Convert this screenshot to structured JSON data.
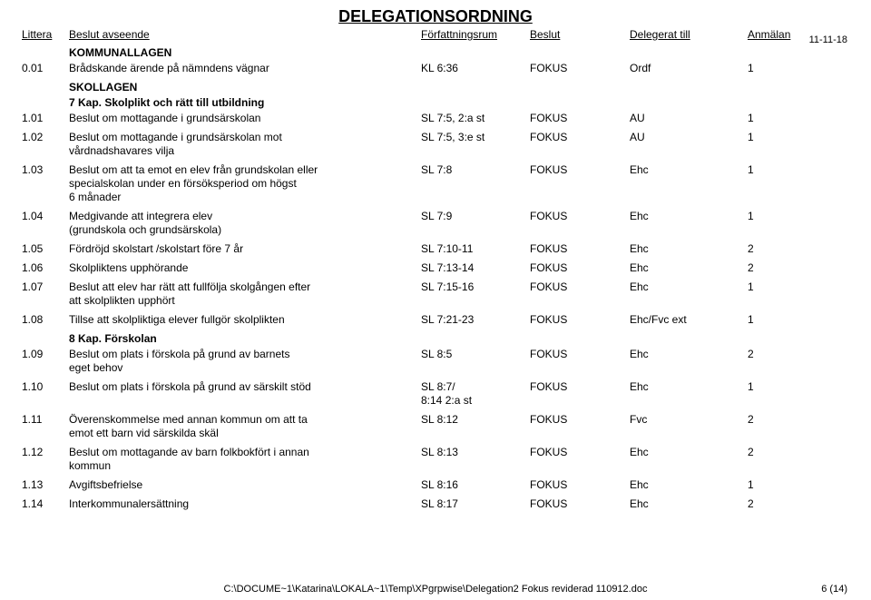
{
  "title": "DELEGATIONSORDNING",
  "date": "11-11-18",
  "columns": {
    "littera": "Littera",
    "beslut_avseende": "Beslut avseende",
    "forfattningsrum": "Författningsrum",
    "beslut": "Beslut",
    "delegerat_till": "Delegerat till",
    "anmalan": "Anmälan"
  },
  "sections": {
    "kommunallagen": "KOMMUNALLAGEN",
    "skollagen": "SKOLLAGEN",
    "kap7": "7 Kap. Skolplikt och rätt till utbildning",
    "kap8": "8 Kap. Förskolan"
  },
  "rows": [
    {
      "litt": "0.01",
      "desc": "Brådskande ärende på nämndens vägnar",
      "forf": "KL 6:36",
      "besl": "FOKUS",
      "deleg": "Ordf",
      "anm": "1"
    },
    {
      "litt": "1.01",
      "desc": "Beslut om mottagande i grundsärskolan",
      "forf": "SL 7:5, 2:a st",
      "besl": "FOKUS",
      "deleg": "AU",
      "anm": "1"
    },
    {
      "litt": "1.02",
      "desc": "Beslut om mottagande i grundsärskolan mot\nvårdnadshavares vilja",
      "forf": "SL 7:5, 3:e st",
      "besl": "FOKUS",
      "deleg": "AU",
      "anm": "1"
    },
    {
      "litt": "1.03",
      "desc": "Beslut om att ta emot en elev från grundskolan eller\nspecialskolan under en försöksperiod om högst\n6 månader",
      "forf": "SL 7:8",
      "besl": "FOKUS",
      "deleg": "Ehc",
      "anm": "1"
    },
    {
      "litt": "1.04",
      "desc": "Medgivande att integrera elev\n(grundskola och grundsärskola)",
      "forf": "SL 7:9",
      "besl": "FOKUS",
      "deleg": "Ehc",
      "anm": "1"
    },
    {
      "litt": "1.05",
      "desc": "Fördröjd skolstart /skolstart före 7 år",
      "forf": "SL 7:10-11",
      "besl": "FOKUS",
      "deleg": "Ehc",
      "anm": "2"
    },
    {
      "litt": "1.06",
      "desc": "Skolpliktens upphörande",
      "forf": "SL 7:13-14",
      "besl": "FOKUS",
      "deleg": "Ehc",
      "anm": "2"
    },
    {
      "litt": "1.07",
      "desc": "Beslut att elev har rätt att fullfölja skolgången efter\natt skolplikten upphört",
      "forf": "SL 7:15-16",
      "besl": "FOKUS",
      "deleg": "Ehc",
      "anm": "1"
    },
    {
      "litt": "1.08",
      "desc": "Tillse att skolpliktiga elever fullgör skolplikten",
      "forf": "SL 7:21-23",
      "besl": "FOKUS",
      "deleg": "Ehc/Fvc ext",
      "anm": "1"
    },
    {
      "litt": "1.09",
      "desc": "Beslut om plats i förskola på grund av barnets\n eget behov",
      "forf": "SL 8:5",
      "besl": "FOKUS",
      "deleg": "Ehc",
      "anm": "2"
    },
    {
      "litt": "1.10",
      "desc": "Beslut om plats i förskola på grund av särskilt stöd",
      "forf": "SL 8:7/\n8:14 2:a st",
      "besl": "FOKUS",
      "deleg": "Ehc",
      "anm": "1"
    },
    {
      "litt": "1.11",
      "desc": "Överenskommelse med annan kommun om att ta\nemot ett barn vid särskilda skäl",
      "forf": "SL 8:12",
      "besl": "FOKUS",
      "deleg": "Fvc",
      "anm": "2"
    },
    {
      "litt": "1.12",
      "desc": "Beslut om mottagande av barn folkbokfört i annan\nkommun",
      "forf": "SL 8:13",
      "besl": "FOKUS",
      "deleg": "Ehc",
      "anm": "2"
    },
    {
      "litt": "1.13",
      "desc": "Avgiftsbefrielse",
      "forf": "SL 8:16",
      "besl": "FOKUS",
      "deleg": "Ehc",
      "anm": "1"
    },
    {
      "litt": "1.14",
      "desc": "Interkommunalersättning",
      "forf": "SL 8:17",
      "besl": "FOKUS",
      "deleg": "Ehc",
      "anm": "2"
    }
  ],
  "footer_path": "C:\\DOCUME~1\\Katarina\\LOKALA~1\\Temp\\XPgrpwise\\Delegation2 Fokus reviderad 110912.doc",
  "page_number": "6 (14)"
}
